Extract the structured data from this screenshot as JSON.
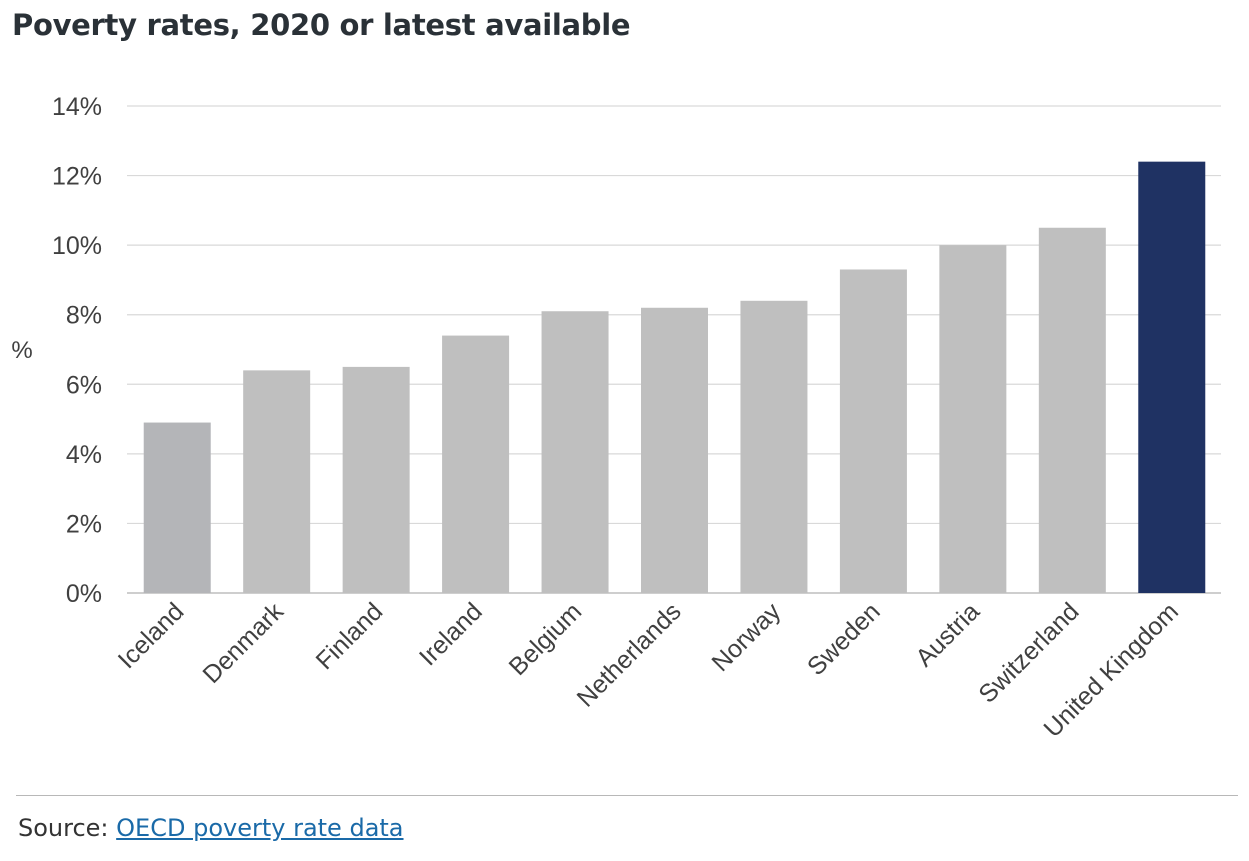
{
  "title": "Poverty rates, 2020 or latest available",
  "chart_data": {
    "type": "bar",
    "categories": [
      "Iceland",
      "Denmark",
      "Finland",
      "Ireland",
      "Belgium",
      "Netherlands",
      "Norway",
      "Sweden",
      "Austria",
      "Switzerland",
      "United Kingdom"
    ],
    "values": [
      4.9,
      6.4,
      6.5,
      7.4,
      8.1,
      8.2,
      8.4,
      9.3,
      10.0,
      10.5,
      12.4
    ],
    "ylabel": "%",
    "ylim": [
      0,
      14
    ],
    "yticks": [
      "0%",
      "2%",
      "4%",
      "6%",
      "8%",
      "10%",
      "12%",
      "14%"
    ],
    "grid": true,
    "colors": {
      "default": "#bfbfbf",
      "highlight": "#1f3263",
      "first": "#b4b5b8"
    },
    "highlight_category": "United Kingdom"
  },
  "footer": {
    "source_prefix": "Source: ",
    "source_link": "OECD poverty rate data"
  }
}
